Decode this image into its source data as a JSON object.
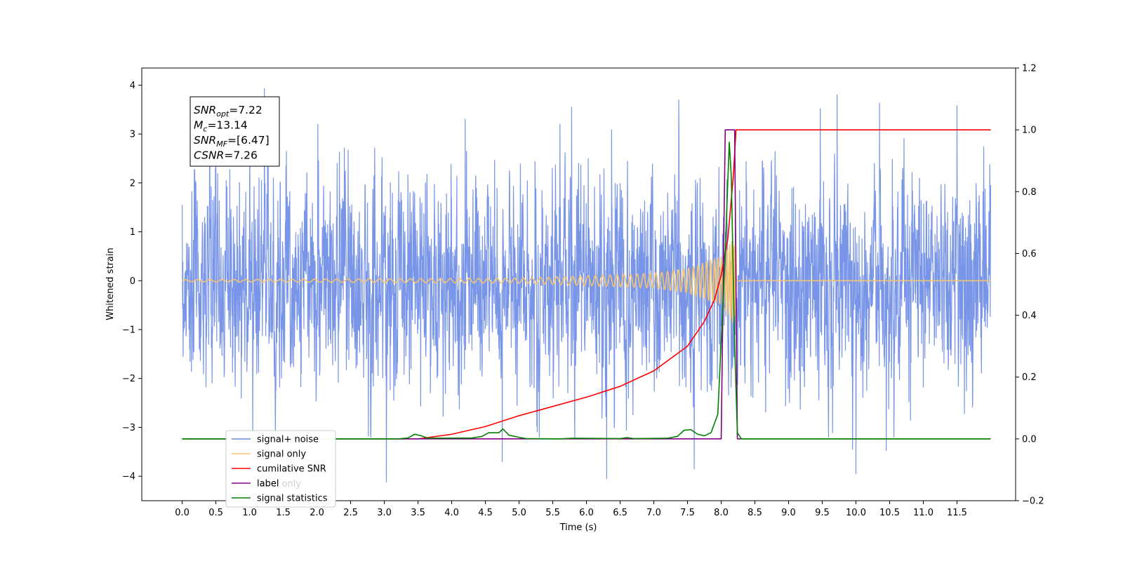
{
  "chart_data": {
    "type": "line",
    "title": "",
    "xlabel": "Time (s)",
    "ylabel": "Whitened strain",
    "y2label": "",
    "xlim": [
      -0.6,
      12.37
    ],
    "ylim": [
      -4.5,
      4.35
    ],
    "y2lim": [
      -0.2,
      1.2
    ],
    "xticks": [
      0.0,
      0.5,
      1.0,
      1.5,
      2.0,
      2.5,
      3.0,
      3.5,
      4.0,
      4.5,
      5.0,
      5.5,
      6.0,
      6.5,
      7.0,
      7.5,
      8.0,
      8.5,
      9.0,
      9.5,
      10.0,
      10.5,
      11.0,
      11.5
    ],
    "xtick_labels": [
      "0.0",
      "0.5",
      "1.0",
      "1.5",
      "2.0",
      "2.5",
      "3.0",
      "3.5",
      "4.0",
      "4.5",
      "5.0",
      "5.5",
      "6.0",
      "6.5",
      "7.0",
      "7.5",
      "8.0",
      "8.5",
      "9.0",
      "9.5",
      "10.0",
      "10.5",
      "11.0",
      "11.5"
    ],
    "yticks": [
      4,
      3,
      2,
      1,
      0,
      -1,
      -2,
      -3,
      -4
    ],
    "ytick_labels": [
      "4",
      "3",
      "2",
      "1",
      "0",
      "−1",
      "−2",
      "−3",
      "−4"
    ],
    "y2ticks": [
      1.2,
      1.0,
      0.8,
      0.6,
      0.4,
      0.2,
      0.0,
      -0.2
    ],
    "y2tick_labels": [
      "1.2",
      "1.0",
      "0.8",
      "0.6",
      "0.4",
      "0.2",
      "0.0",
      "−0.2"
    ],
    "grid": false,
    "legend_position": "bottom-left",
    "annotation": {
      "lines": [
        {
          "base": "SNR",
          "sub": "opt",
          "value": "=7.22"
        },
        {
          "base": "M",
          "sub": "c",
          "value": "=13.14"
        },
        {
          "base": "SNR",
          "sub": "MF",
          "value": "=[6.47]"
        },
        {
          "base": "CSNR",
          "sub": "",
          "value": "=7.26"
        }
      ]
    },
    "series": [
      {
        "name": "signal+ noise",
        "axis": "left",
        "color": "#6a89e4",
        "kind": "noise",
        "t_start": 0.0,
        "t_end": 12.0,
        "envelope_sd": 0.95,
        "peaks": [
          [
            1.22,
            3.93
          ],
          [
            3.03,
            3.8
          ],
          [
            4.2,
            3.3
          ],
          [
            5.78,
            3.55
          ],
          [
            7.37,
            3.7
          ],
          [
            9.72,
            3.8
          ],
          [
            9.47,
            3.52
          ],
          [
            10.35,
            3.63
          ],
          [
            11.5,
            3.58
          ],
          [
            3.03,
            -4.12
          ],
          [
            6.3,
            -4.05
          ],
          [
            10.0,
            -3.95
          ],
          [
            7.6,
            -3.85
          ],
          [
            4.75,
            -3.7
          ],
          [
            9.95,
            -3.45
          ],
          [
            10.45,
            -3.47
          ]
        ]
      },
      {
        "name": "signal only",
        "axis": "left",
        "color": "#f5c46e",
        "kind": "chirp",
        "t_start": 0.0,
        "t_end": 12.0,
        "merger_time": 8.22,
        "amplitude_at": [
          [
            0.0,
            0.02
          ],
          [
            5.0,
            0.05
          ],
          [
            7.0,
            0.15
          ],
          [
            7.5,
            0.25
          ],
          [
            8.0,
            0.5
          ],
          [
            8.15,
            0.8
          ],
          [
            8.22,
            0.95
          ]
        ]
      },
      {
        "name": "cumilative SNR",
        "axis": "right",
        "color": "#ff0000",
        "points": [
          [
            0.0,
            0.0
          ],
          [
            3.5,
            0.0
          ],
          [
            4.0,
            0.015
          ],
          [
            4.5,
            0.04
          ],
          [
            5.0,
            0.075
          ],
          [
            5.5,
            0.105
          ],
          [
            6.0,
            0.135
          ],
          [
            6.5,
            0.17
          ],
          [
            7.0,
            0.22
          ],
          [
            7.5,
            0.3
          ],
          [
            7.75,
            0.38
          ],
          [
            7.9,
            0.45
          ],
          [
            8.0,
            0.53
          ],
          [
            8.1,
            0.65
          ],
          [
            8.18,
            0.85
          ],
          [
            8.22,
            1.0
          ],
          [
            12.0,
            1.0
          ]
        ]
      },
      {
        "name": "label",
        "axis": "right",
        "color": "#800080",
        "points": [
          [
            0.0,
            0.0
          ],
          [
            8.0,
            0.0
          ],
          [
            8.06,
            1.0
          ],
          [
            8.2,
            1.0
          ],
          [
            8.24,
            0.0
          ],
          [
            12.0,
            0.0
          ]
        ]
      },
      {
        "name": "signal statistics",
        "axis": "right",
        "color": "#008000",
        "points": [
          [
            0.0,
            0.0
          ],
          [
            3.2,
            0.0
          ],
          [
            3.35,
            0.003
          ],
          [
            3.45,
            0.015
          ],
          [
            3.55,
            0.01
          ],
          [
            3.65,
            0.002
          ],
          [
            4.3,
            0.003
          ],
          [
            4.45,
            0.008
          ],
          [
            4.55,
            0.02
          ],
          [
            4.7,
            0.02
          ],
          [
            4.76,
            0.032
          ],
          [
            4.85,
            0.012
          ],
          [
            5.0,
            0.005
          ],
          [
            5.1,
            0.001
          ],
          [
            5.6,
            0.0
          ],
          [
            5.8,
            0.002
          ],
          [
            6.5,
            0.001
          ],
          [
            6.6,
            0.004
          ],
          [
            6.7,
            0.001
          ],
          [
            7.2,
            0.002
          ],
          [
            7.35,
            0.008
          ],
          [
            7.45,
            0.028
          ],
          [
            7.55,
            0.03
          ],
          [
            7.65,
            0.015
          ],
          [
            7.75,
            0.01
          ],
          [
            7.85,
            0.02
          ],
          [
            7.95,
            0.08
          ],
          [
            8.05,
            0.55
          ],
          [
            8.12,
            0.96
          ],
          [
            8.15,
            0.85
          ],
          [
            8.2,
            0.3
          ],
          [
            8.24,
            0.02
          ],
          [
            8.3,
            0.0
          ],
          [
            12.0,
            0.0
          ]
        ]
      },
      {
        "name": "label only",
        "axis": "right",
        "color": "#000000",
        "hidden_line": true,
        "points": []
      }
    ],
    "legend": [
      {
        "label": "signal+ noise",
        "color": "#6a89e4"
      },
      {
        "label": "signal only",
        "color": "#f5c46e"
      },
      {
        "label": "cumilative SNR",
        "color": "#ff0000"
      },
      {
        "label": "label",
        "color": "#800080"
      },
      {
        "label": "signal statistics",
        "color": "#008000"
      }
    ],
    "overlapping_text": "label only"
  }
}
